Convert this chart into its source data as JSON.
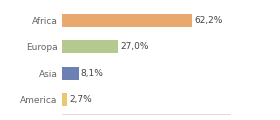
{
  "categories": [
    "Africa",
    "Europa",
    "Asia",
    "America"
  ],
  "values": [
    62.2,
    27.0,
    8.1,
    2.7
  ],
  "labels": [
    "62,2%",
    "27,0%",
    "8,1%",
    "2,7%"
  ],
  "bar_colors": [
    "#e8a96e",
    "#b5c98e",
    "#6d80b4",
    "#e8c96e"
  ],
  "background_color": "#ffffff",
  "xlim": [
    0,
    80
  ],
  "label_fontsize": 6.5,
  "tick_fontsize": 6.5,
  "bar_height": 0.5
}
